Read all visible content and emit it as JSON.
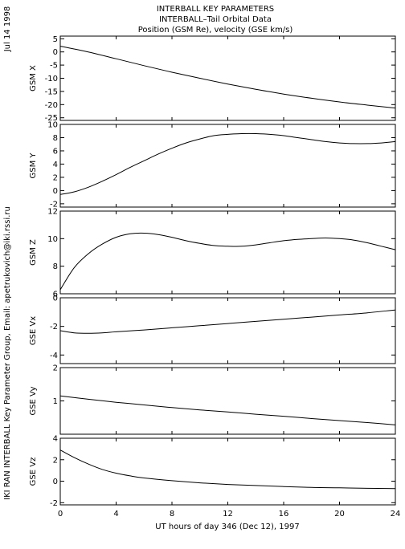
{
  "title_lines": [
    "INTERBALL KEY PARAMETERS",
    "INTERBALL–Tail Orbital Data",
    "Position (GSM Re), velocity (GSE km/s)"
  ],
  "side_date": "Jul 14 1998",
  "side_credit": "IKI RAN INTERBALL Key Parameter Group, Email: apetrukovich@iki.rssi.ru",
  "x_axis": {
    "label": "UT hours of day 346 (Dec 12), 1997",
    "range": [
      0,
      24
    ],
    "ticks": [
      0,
      4,
      8,
      12,
      16,
      20,
      24
    ]
  },
  "chart_data": [
    {
      "type": "line",
      "ylabel": "GSM X",
      "ylim": [
        -26,
        6
      ],
      "yticks": [
        5,
        0,
        -5,
        -10,
        -15,
        -20,
        -25
      ],
      "x": [
        0,
        2,
        4,
        6,
        8,
        10,
        12,
        14,
        16,
        18,
        20,
        22,
        24
      ],
      "values": [
        2.2,
        0.0,
        -2.6,
        -5.2,
        -7.7,
        -10.0,
        -12.2,
        -14.2,
        -16.0,
        -17.6,
        -19.0,
        -20.2,
        -21.3
      ]
    },
    {
      "type": "line",
      "ylabel": "GSM Y",
      "ylim": [
        -2.5,
        10
      ],
      "yticks": [
        10,
        8,
        6,
        4,
        2,
        0,
        -2
      ],
      "x": [
        0,
        1,
        2,
        3,
        4,
        5,
        6,
        7,
        8,
        9,
        10,
        11,
        12,
        13,
        14,
        15,
        16,
        17,
        18,
        19,
        20,
        21,
        22,
        23,
        24
      ],
      "values": [
        -0.6,
        -0.2,
        0.5,
        1.4,
        2.4,
        3.5,
        4.5,
        5.5,
        6.4,
        7.2,
        7.8,
        8.3,
        8.5,
        8.6,
        8.6,
        8.5,
        8.3,
        8.0,
        7.7,
        7.4,
        7.2,
        7.1,
        7.1,
        7.2,
        7.4
      ]
    },
    {
      "type": "line",
      "ylabel": "GSM Z",
      "ylim": [
        6,
        12
      ],
      "yticks": [
        12,
        10,
        8,
        6
      ],
      "x": [
        0,
        1,
        2,
        3,
        4,
        5,
        6,
        7,
        8,
        9,
        10,
        11,
        12,
        13,
        14,
        15,
        16,
        17,
        18,
        19,
        20,
        21,
        22,
        23,
        24
      ],
      "values": [
        6.3,
        7.9,
        8.9,
        9.6,
        10.1,
        10.35,
        10.4,
        10.3,
        10.1,
        9.85,
        9.65,
        9.5,
        9.45,
        9.45,
        9.55,
        9.7,
        9.85,
        9.95,
        10.0,
        10.05,
        10.0,
        9.9,
        9.7,
        9.45,
        9.2
      ]
    },
    {
      "type": "line",
      "ylabel": "GSE Vx",
      "ylim": [
        -4.6,
        0
      ],
      "yticks": [
        0,
        -2,
        -4
      ],
      "x": [
        0,
        1,
        2,
        3,
        4,
        6,
        8,
        10,
        12,
        14,
        16,
        18,
        20,
        22,
        24
      ],
      "values": [
        -2.3,
        -2.45,
        -2.48,
        -2.45,
        -2.38,
        -2.25,
        -2.1,
        -1.95,
        -1.8,
        -1.65,
        -1.5,
        -1.35,
        -1.2,
        -1.05,
        -0.85
      ]
    },
    {
      "type": "line",
      "ylabel": "GSE Vy",
      "ylim": [
        0,
        2
      ],
      "yticks": [
        2,
        1
      ],
      "x": [
        0,
        2,
        4,
        6,
        8,
        10,
        12,
        14,
        16,
        18,
        20,
        22,
        24
      ],
      "values": [
        1.15,
        1.05,
        0.96,
        0.88,
        0.8,
        0.73,
        0.67,
        0.6,
        0.54,
        0.47,
        0.41,
        0.35,
        0.28
      ]
    },
    {
      "type": "line",
      "ylabel": "GSE Vz",
      "ylim": [
        -2.2,
        4
      ],
      "yticks": [
        4,
        2,
        0,
        -2
      ],
      "x": [
        0,
        1,
        2,
        3,
        4,
        5,
        6,
        8,
        10,
        12,
        14,
        16,
        18,
        20,
        22,
        24
      ],
      "values": [
        2.9,
        2.2,
        1.6,
        1.1,
        0.75,
        0.5,
        0.3,
        0.05,
        -0.15,
        -0.3,
        -0.4,
        -0.5,
        -0.58,
        -0.62,
        -0.66,
        -0.68
      ]
    }
  ]
}
